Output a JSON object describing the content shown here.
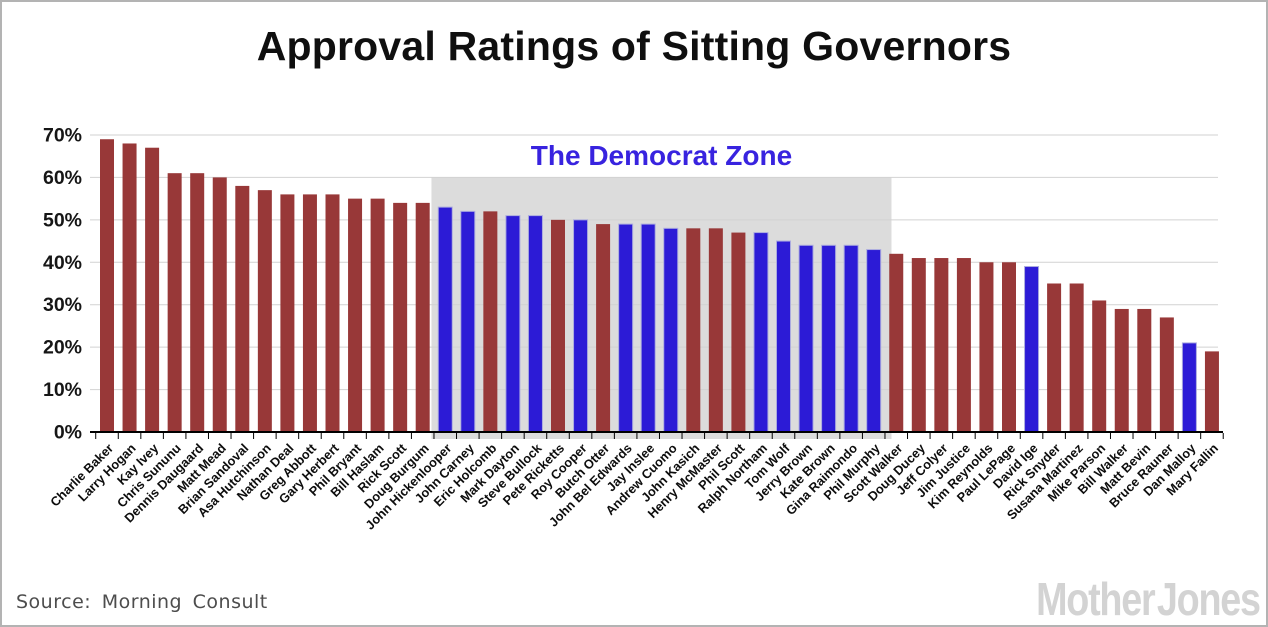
{
  "title": "Approval Ratings of Sitting Governors",
  "source_text": "Source: Morning Consult",
  "branding": "Mother Jones",
  "colors": {
    "republican_bar": "#983838",
    "democrat_bar": "#2C1BD6",
    "democrat_bar_border": "#ABABDF",
    "zone_background": "#DCDCDC",
    "zone_label": "#3823DF",
    "gridline": "#D2D2D2",
    "axis": "#000000",
    "title_text": "#0F0F0F",
    "source_text": "#4D4D4D",
    "logo_text": "#D3D3D3"
  },
  "chart_data": {
    "type": "bar",
    "title": "Approval Ratings of Sitting Governors",
    "xlabel": "",
    "ylabel": "",
    "ylim": [
      0,
      70
    ],
    "ytick_labels": [
      "0%",
      "10%",
      "20%",
      "30%",
      "40%",
      "50%",
      "60%",
      "70%"
    ],
    "grid": true,
    "legend": "none",
    "zone": {
      "label": "The Democrat Zone",
      "from": "John Hickenlooper",
      "to": "Phil Murphy"
    },
    "governors": [
      {
        "name": "Charlie Baker",
        "party": "R",
        "value": 69
      },
      {
        "name": "Larry Hogan",
        "party": "R",
        "value": 68
      },
      {
        "name": "Kay Ivey",
        "party": "R",
        "value": 67
      },
      {
        "name": "Chris Sununu",
        "party": "R",
        "value": 61
      },
      {
        "name": "Dennis Daugaard",
        "party": "R",
        "value": 61
      },
      {
        "name": "Matt Mead",
        "party": "R",
        "value": 60
      },
      {
        "name": "Brian Sandoval",
        "party": "R",
        "value": 58
      },
      {
        "name": "Asa Hutchinson",
        "party": "R",
        "value": 57
      },
      {
        "name": "Nathan Deal",
        "party": "R",
        "value": 56
      },
      {
        "name": "Greg Abbott",
        "party": "R",
        "value": 56
      },
      {
        "name": "Gary Herbert",
        "party": "R",
        "value": 56
      },
      {
        "name": "Phil Bryant",
        "party": "R",
        "value": 55
      },
      {
        "name": "Bill Haslam",
        "party": "R",
        "value": 55
      },
      {
        "name": "Rick Scott",
        "party": "R",
        "value": 54
      },
      {
        "name": "Doug Burgum",
        "party": "R",
        "value": 54
      },
      {
        "name": "John Hickenlooper",
        "party": "D",
        "value": 53
      },
      {
        "name": "John Carney",
        "party": "D",
        "value": 52
      },
      {
        "name": "Eric Holcomb",
        "party": "R",
        "value": 52
      },
      {
        "name": "Mark Dayton",
        "party": "D",
        "value": 51
      },
      {
        "name": "Steve Bullock",
        "party": "D",
        "value": 51
      },
      {
        "name": "Pete Ricketts",
        "party": "R",
        "value": 50
      },
      {
        "name": "Roy Cooper",
        "party": "D",
        "value": 50
      },
      {
        "name": "Butch Otter",
        "party": "R",
        "value": 49
      },
      {
        "name": "John Bel Edwards",
        "party": "D",
        "value": 49
      },
      {
        "name": "Jay Inslee",
        "party": "D",
        "value": 49
      },
      {
        "name": "Andrew Cuomo",
        "party": "D",
        "value": 48
      },
      {
        "name": "John Kasich",
        "party": "R",
        "value": 48
      },
      {
        "name": "Henry McMaster",
        "party": "R",
        "value": 48
      },
      {
        "name": "Phil Scott",
        "party": "R",
        "value": 47
      },
      {
        "name": "Ralph Northam",
        "party": "D",
        "value": 47
      },
      {
        "name": "Tom Wolf",
        "party": "D",
        "value": 45
      },
      {
        "name": "Jerry Brown",
        "party": "D",
        "value": 44
      },
      {
        "name": "Kate Brown",
        "party": "D",
        "value": 44
      },
      {
        "name": "Gina Raimondo",
        "party": "D",
        "value": 44
      },
      {
        "name": "Phil Murphy",
        "party": "D",
        "value": 43
      },
      {
        "name": "Scott Walker",
        "party": "R",
        "value": 42
      },
      {
        "name": "Doug Ducey",
        "party": "R",
        "value": 41
      },
      {
        "name": "Jeff Colyer",
        "party": "R",
        "value": 41
      },
      {
        "name": "Jim Justice",
        "party": "R",
        "value": 41
      },
      {
        "name": "Kim Reynolds",
        "party": "R",
        "value": 40
      },
      {
        "name": "Paul LePage",
        "party": "R",
        "value": 40
      },
      {
        "name": "David Ige",
        "party": "D",
        "value": 39
      },
      {
        "name": "Rick Snyder",
        "party": "R",
        "value": 35
      },
      {
        "name": "Susana Martinez",
        "party": "R",
        "value": 35
      },
      {
        "name": "Mike Parson",
        "party": "R",
        "value": 31
      },
      {
        "name": "Bill Walker",
        "party": "R",
        "value": 29
      },
      {
        "name": "Matt Bevin",
        "party": "R",
        "value": 29
      },
      {
        "name": "Bruce Rauner",
        "party": "R",
        "value": 27
      },
      {
        "name": "Dan Malloy",
        "party": "D",
        "value": 21
      },
      {
        "name": "Mary Fallin",
        "party": "R",
        "value": 19
      }
    ]
  }
}
